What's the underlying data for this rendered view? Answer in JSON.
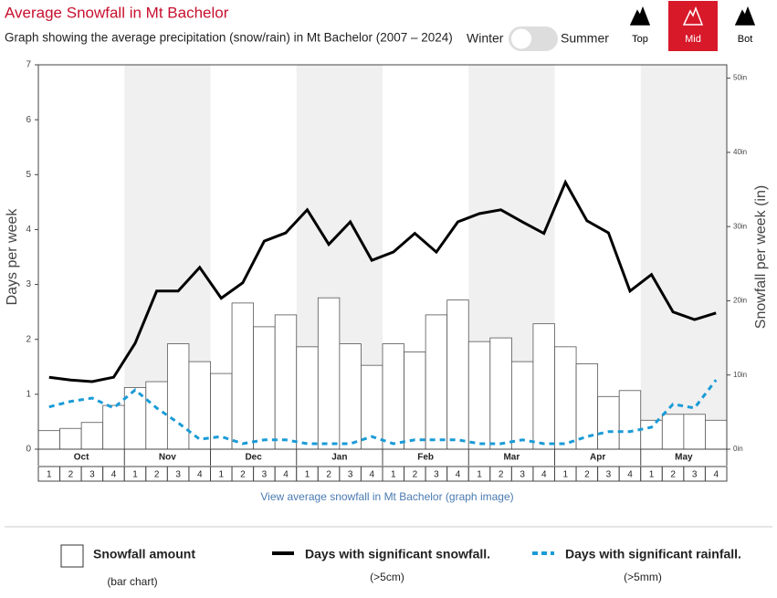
{
  "header": {
    "title": "Average Snowfall in Mt Bachelor",
    "subtitle": "Graph showing the average precipitation (snow/rain) in Mt Bachelor (2007 – 2024)",
    "toggle": {
      "left": "Winter",
      "right": "Summer"
    },
    "elevations": [
      {
        "label": "Top",
        "active": false
      },
      {
        "label": "Mid",
        "active": true
      },
      {
        "label": "Bot",
        "active": false
      }
    ]
  },
  "chart_data": {
    "type": "combo",
    "ylabel": "Days per week",
    "y2label": "Snowfall per week (in)",
    "months": [
      "Oct",
      "Nov",
      "Dec",
      "Jan",
      "Feb",
      "Mar",
      "Apr",
      "May"
    ],
    "shaded_months": [
      false,
      true,
      false,
      true,
      false,
      true,
      false,
      true
    ],
    "categories": [
      "1",
      "2",
      "3",
      "4",
      "1",
      "2",
      "3",
      "4",
      "1",
      "2",
      "3",
      "4",
      "1",
      "2",
      "3",
      "4",
      "1",
      "2",
      "3",
      "4",
      "1",
      "2",
      "3",
      "4",
      "1",
      "2",
      "3",
      "4",
      "1",
      "2",
      "3",
      "4"
    ],
    "ylim": [
      0,
      7
    ],
    "yticks": [
      0,
      1,
      2,
      3,
      4,
      5,
      6,
      7
    ],
    "y2lim": [
      0,
      51.8
    ],
    "y2ticks": [
      {
        "value": 0,
        "label": "0in"
      },
      {
        "value": 10,
        "label": "10in"
      },
      {
        "value": 20,
        "label": "20in"
      },
      {
        "value": 30,
        "label": "30in"
      },
      {
        "value": 40,
        "label": "40in"
      },
      {
        "value": 50,
        "label": "50in"
      }
    ],
    "series": [
      {
        "name": "Snowfall amount",
        "note": "(bar chart)",
        "type": "bar",
        "axis": "y2",
        "color": "#ffffff",
        "stroke": "#555555",
        "values": [
          2.5,
          2.8,
          3.6,
          5.9,
          8.3,
          9.1,
          14.2,
          11.8,
          10.2,
          19.7,
          16.5,
          18.1,
          13.8,
          20.4,
          14.2,
          11.3,
          14.2,
          13.1,
          18.1,
          20.1,
          14.5,
          15.0,
          11.8,
          16.9,
          13.8,
          11.5,
          7.1,
          7.9,
          3.9,
          4.7,
          4.7,
          3.9
        ]
      },
      {
        "name": "Days with significant snowfall.",
        "note": "(>5cm)",
        "type": "line",
        "color": "#000000",
        "dashed": false,
        "values": [
          1.31,
          1.26,
          1.23,
          1.31,
          1.93,
          2.88,
          2.88,
          3.31,
          2.75,
          3.03,
          3.79,
          3.94,
          4.36,
          3.73,
          4.14,
          3.44,
          3.59,
          3.93,
          3.59,
          4.14,
          4.29,
          4.36,
          4.14,
          3.93,
          4.86,
          4.16,
          3.94,
          2.88,
          3.18,
          2.5,
          2.36,
          2.48
        ]
      },
      {
        "name": "Days with significant rainfall.",
        "note": "(>5mm)",
        "type": "line",
        "color": "#1a9bd7",
        "dashed": true,
        "values": [
          0.77,
          0.87,
          0.93,
          0.75,
          1.08,
          0.75,
          0.48,
          0.18,
          0.23,
          0.1,
          0.17,
          0.17,
          0.1,
          0.1,
          0.1,
          0.23,
          0.1,
          0.17,
          0.17,
          0.17,
          0.1,
          0.1,
          0.17,
          0.1,
          0.1,
          0.23,
          0.32,
          0.32,
          0.4,
          0.82,
          0.75,
          1.26
        ]
      }
    ]
  },
  "link": "View average snowfall in Mt Bachelor (graph image)"
}
